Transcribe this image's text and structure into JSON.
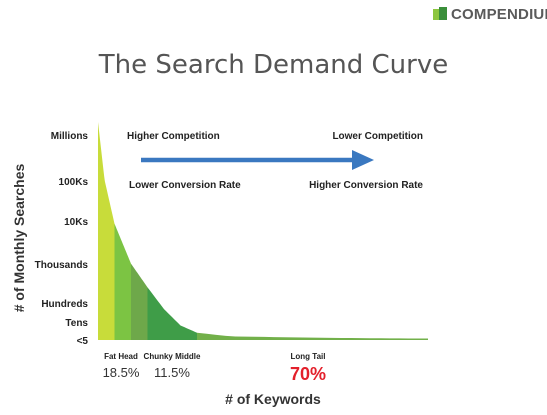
{
  "logo": {
    "text": "COMPENDIUM",
    "tm": "™",
    "colors": [
      "#8cc63f",
      "#3a8f3a"
    ]
  },
  "title": "The Search Demand Curve",
  "chart_data": {
    "type": "area",
    "ylabel": "# of Monthly Searches",
    "xlabel": "# of Keywords",
    "y_ticks": [
      "Millions",
      "100Ks",
      "10Ks",
      "Thousands",
      "Hundreds",
      "Tens",
      "<5"
    ],
    "curve": {
      "x": [
        0,
        2,
        5,
        10,
        15,
        20,
        25,
        30,
        40,
        60,
        80,
        100
      ],
      "y": [
        6.0,
        4.4,
        3.2,
        2.1,
        1.45,
        0.85,
        0.4,
        0.2,
        0.1,
        0.07,
        0.05,
        0.04
      ]
    },
    "segments": [
      {
        "name": "Fat Head",
        "share": "18.5%",
        "x_range": [
          0,
          5
        ],
        "color": "#c8dc3a",
        "highlight": false
      },
      {
        "name": "",
        "share": "",
        "x_range": [
          5,
          10
        ],
        "color": "#7cc443",
        "highlight": false
      },
      {
        "name": "",
        "share": "",
        "x_range": [
          10,
          15
        ],
        "color": "#6ea84a",
        "highlight": false
      },
      {
        "name": "Chunky Middle",
        "share": "11.5%",
        "x_range": [
          15,
          30
        ],
        "color": "#3f9d48",
        "highlight": false
      },
      {
        "name": "Long Tail",
        "share": "70%",
        "x_range": [
          30,
          100
        ],
        "color": "#72b04a",
        "highlight": true
      }
    ],
    "annotations": {
      "left_top": "Higher Competition",
      "left_bottom": "Lower Conversion Rate",
      "right_top": "Lower Competition",
      "right_bottom": "Higher Conversion Rate"
    },
    "arrow_color": "#3a78c0"
  }
}
